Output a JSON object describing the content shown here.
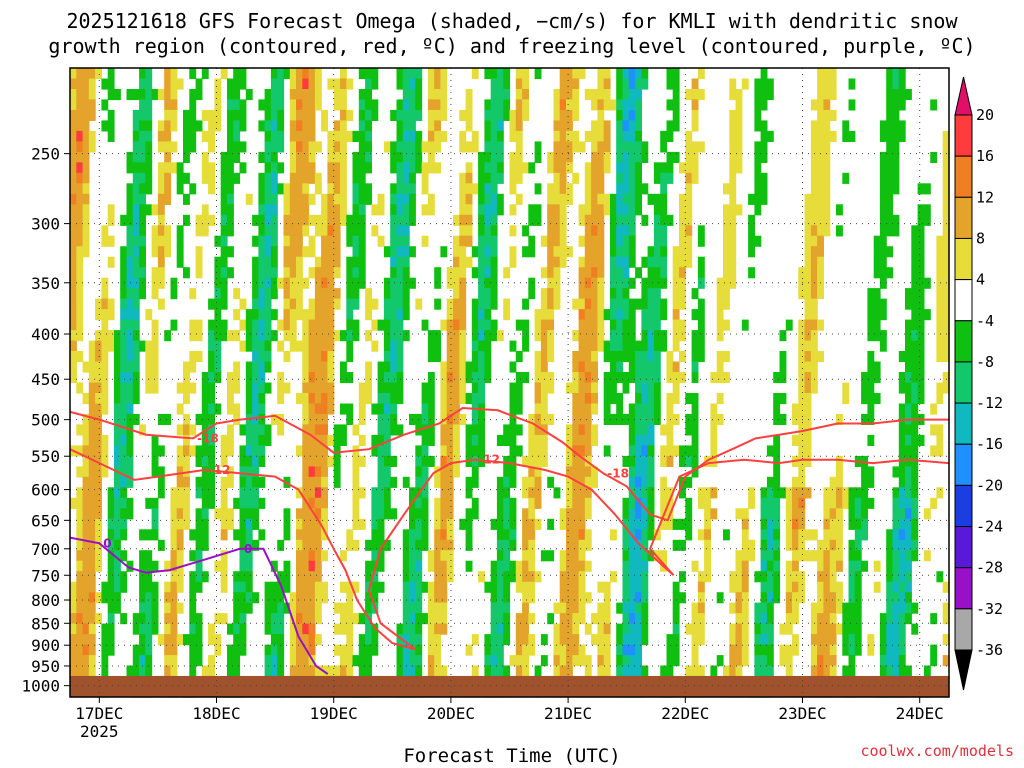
{
  "title": {
    "line1": "2025121618 GFS Forecast Omega (shaded, −cm/s) for KMLI with dendritic snow",
    "line2": "growth region (contoured, red, ºC) and freezing level (contoured, purple, ºC)"
  },
  "xlabel": "Forecast Time (UTC)",
  "credit": "coolwx.com/models",
  "chart_data": {
    "type": "heatmap",
    "title": "2025121618 GFS Forecast Omega (shaded, −cm/s) for KMLI with dendritic snow growth region (contoured, red, ºC) and freezing level (contoured, purple, ºC)",
    "xlabel": "Forecast Time (UTC)",
    "ylabel": "",
    "x_ticks": [
      "17DEC",
      "18DEC",
      "19DEC",
      "20DEC",
      "21DEC",
      "22DEC",
      "23DEC",
      "24DEC"
    ],
    "x_tick_sub": "2025",
    "x_range_days": [
      16.75,
      24.25
    ],
    "y_ticks": [
      250,
      300,
      350,
      400,
      450,
      500,
      550,
      600,
      650,
      700,
      750,
      800,
      850,
      900,
      950,
      1000
    ],
    "y_range_hPa": [
      200,
      1030
    ],
    "y_scale": "log",
    "colorbar": {
      "levels": [
        20,
        16,
        12,
        8,
        4,
        -4,
        -8,
        -12,
        -16,
        -20,
        -24,
        -28,
        -32,
        -36
      ],
      "bins": [
        {
          "from": 16,
          "to": 20,
          "color": "#ff3b3b"
        },
        {
          "from": 12,
          "to": 16,
          "color": "#f07f22"
        },
        {
          "from": 8,
          "to": 12,
          "color": "#e4a32a"
        },
        {
          "from": 4,
          "to": 8,
          "color": "#e6dc3a"
        },
        {
          "from": -4,
          "to": 4,
          "color": "#ffffff"
        },
        {
          "from": -8,
          "to": -4,
          "color": "#10c010"
        },
        {
          "from": -12,
          "to": -8,
          "color": "#12c86a"
        },
        {
          "from": -16,
          "to": -12,
          "color": "#10b8c0"
        },
        {
          "from": -20,
          "to": -16,
          "color": "#1e90ff"
        },
        {
          "from": -24,
          "to": -20,
          "color": "#1a3ee0"
        },
        {
          "from": -28,
          "to": -24,
          "color": "#5a18d8"
        },
        {
          "from": -32,
          "to": -28,
          "color": "#9a10c8"
        },
        {
          "from": -36,
          "to": -32,
          "color": "#a8a8a8"
        }
      ],
      "top_arrow_color": "#e0106a",
      "bottom_arrow_color": "#000000"
    },
    "contours": [
      {
        "name": "-18",
        "color": "#ff4040",
        "points": [
          [
            16.75,
            490
          ],
          [
            17.0,
            500
          ],
          [
            17.4,
            520
          ],
          [
            17.8,
            525
          ],
          [
            18.0,
            505
          ],
          [
            18.2,
            500
          ],
          [
            18.5,
            495
          ],
          [
            18.8,
            520
          ],
          [
            19.0,
            545
          ],
          [
            19.3,
            540
          ],
          [
            19.6,
            520
          ],
          [
            19.9,
            505
          ],
          [
            20.1,
            485
          ],
          [
            20.4,
            488
          ],
          [
            20.7,
            505
          ],
          [
            20.95,
            530
          ],
          [
            21.1,
            550
          ],
          [
            21.3,
            575
          ],
          [
            21.5,
            595
          ],
          [
            21.7,
            640
          ],
          [
            21.85,
            650
          ],
          [
            22.0,
            580
          ],
          [
            22.2,
            555
          ],
          [
            22.4,
            540
          ],
          [
            22.6,
            525
          ],
          [
            22.8,
            520
          ],
          [
            23.0,
            515
          ],
          [
            23.3,
            505
          ],
          [
            23.6,
            505
          ],
          [
            23.9,
            500
          ],
          [
            24.25,
            500
          ]
        ]
      },
      {
        "name": "-12",
        "color": "#ff4040",
        "points": [
          [
            16.75,
            540
          ],
          [
            17.0,
            560
          ],
          [
            17.3,
            585
          ],
          [
            17.5,
            580
          ],
          [
            17.9,
            570
          ],
          [
            18.2,
            575
          ],
          [
            18.5,
            580
          ],
          [
            18.7,
            600
          ],
          [
            18.9,
            660
          ],
          [
            19.0,
            700
          ],
          [
            19.1,
            740
          ],
          [
            19.2,
            800
          ],
          [
            19.35,
            860
          ],
          [
            19.5,
            895
          ],
          [
            19.7,
            910
          ],
          [
            19.55,
            880
          ],
          [
            19.4,
            850
          ],
          [
            19.3,
            780
          ],
          [
            19.4,
            700
          ],
          [
            19.6,
            640
          ],
          [
            19.75,
            600
          ],
          [
            19.85,
            575
          ],
          [
            20.0,
            560
          ],
          [
            20.2,
            555
          ],
          [
            20.5,
            560
          ],
          [
            20.8,
            570
          ],
          [
            21.0,
            580
          ],
          [
            21.2,
            600
          ],
          [
            21.4,
            640
          ],
          [
            21.6,
            690
          ],
          [
            21.8,
            730
          ],
          [
            21.9,
            750
          ],
          [
            21.7,
            700
          ],
          [
            21.95,
            580
          ],
          [
            22.2,
            560
          ],
          [
            22.5,
            555
          ],
          [
            22.8,
            560
          ],
          [
            23.0,
            555
          ],
          [
            23.3,
            555
          ],
          [
            23.6,
            560
          ],
          [
            23.9,
            555
          ],
          [
            24.25,
            560
          ]
        ]
      },
      {
        "name": "0",
        "color": "#9a10c8",
        "points": [
          [
            16.75,
            680
          ],
          [
            17.0,
            690
          ],
          [
            17.25,
            735
          ],
          [
            17.4,
            745
          ],
          [
            17.6,
            740
          ],
          [
            17.9,
            720
          ],
          [
            18.2,
            700
          ],
          [
            18.4,
            700
          ],
          [
            18.55,
            770
          ],
          [
            18.7,
            880
          ],
          [
            18.85,
            950
          ],
          [
            18.95,
            970
          ]
        ]
      }
    ],
    "ground_surface_hPa": 975,
    "ground_color": "#a0522d"
  }
}
